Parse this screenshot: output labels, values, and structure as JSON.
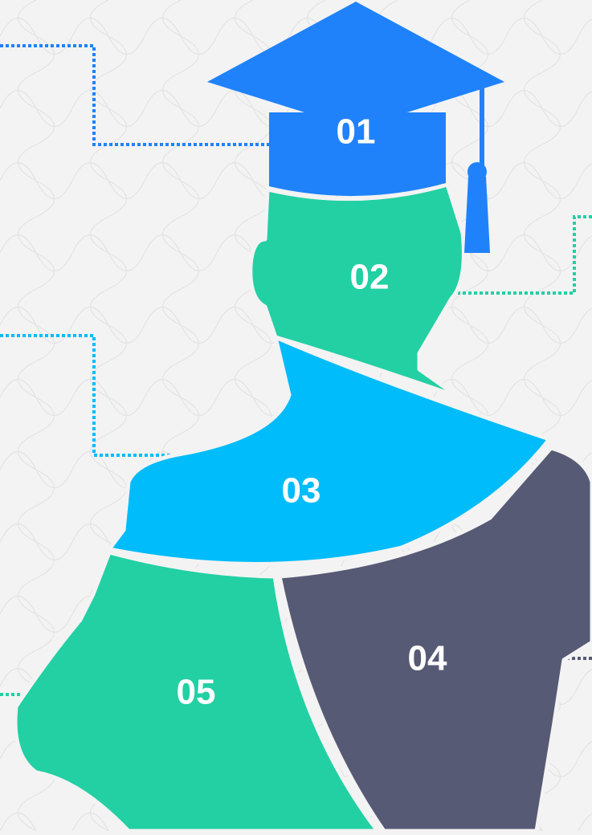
{
  "segments": [
    {
      "label": "01"
    },
    {
      "label": "02"
    },
    {
      "label": "03"
    },
    {
      "label": "04"
    },
    {
      "label": "05"
    }
  ]
}
